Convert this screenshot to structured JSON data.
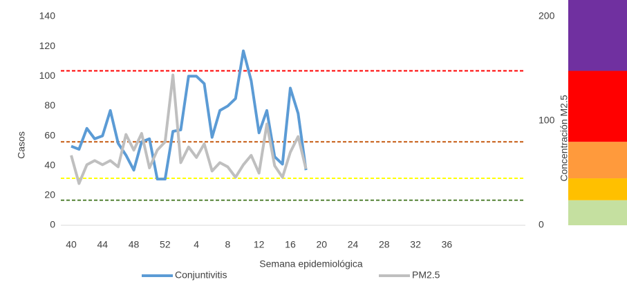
{
  "chart_data": {
    "type": "line",
    "y_label": "Casos",
    "y2_label": "Concentración M2.5",
    "x_label": "Semana epidemiológica",
    "categories": [
      40,
      null,
      null,
      null,
      44,
      null,
      null,
      null,
      48,
      null,
      null,
      null,
      52,
      null,
      null,
      null,
      4,
      null,
      null,
      null,
      8,
      null,
      null,
      null,
      12,
      null,
      null,
      null,
      16,
      null,
      null,
      null,
      20,
      null,
      null,
      null,
      24,
      null,
      null,
      null,
      28,
      null,
      null,
      null,
      32,
      null,
      null,
      null,
      36,
      null,
      null,
      null,
      null,
      null,
      null,
      null,
      null,
      null
    ],
    "ylim": [
      0,
      140
    ],
    "yticks": [
      0,
      20,
      40,
      60,
      80,
      100,
      120,
      140
    ],
    "y2lim": [
      0,
      200
    ],
    "y2ticks": [
      0,
      100,
      200
    ],
    "series": [
      {
        "name": "Conjuntivitis",
        "color": "#5b9bd5",
        "values": [
          53,
          51,
          65,
          58,
          60,
          77,
          55,
          47,
          37,
          56,
          58,
          31,
          31,
          63,
          64,
          100,
          100,
          95,
          59,
          77,
          80,
          85,
          117,
          97,
          62,
          77,
          46,
          41,
          92,
          75,
          37,
          null,
          null,
          null,
          null,
          null,
          null,
          null,
          null,
          null,
          null,
          null,
          null,
          null,
          null,
          null,
          null,
          null,
          null,
          null,
          null,
          null,
          null,
          null,
          null,
          null,
          null,
          null
        ]
      },
      {
        "name": "PM2.5",
        "color": "#bfbfbf",
        "axis": "y2",
        "values": [
          67,
          40,
          58,
          62,
          58,
          62,
          56,
          87,
          72,
          88,
          55,
          72,
          80,
          144,
          60,
          75,
          65,
          78,
          52,
          60,
          56,
          46,
          58,
          67,
          50,
          97,
          57,
          46,
          70,
          85,
          54,
          null,
          null,
          null,
          null,
          null,
          null,
          null,
          null,
          null,
          null,
          null,
          null,
          null,
          null,
          null,
          null,
          null,
          null,
          null,
          null,
          null,
          null,
          null,
          null,
          null,
          null,
          null
        ]
      }
    ],
    "thresholds": [
      {
        "value": 24,
        "color": "#548235"
      },
      {
        "value": 45,
        "color": "#ffff00"
      },
      {
        "value": 80,
        "color": "#c55a11"
      },
      {
        "value": 148,
        "color": "#ff0000"
      }
    ],
    "band_colors": [
      "#c5e0a0",
      "#ffc000",
      "#ff9a3c",
      "#ff0000",
      "#7030a0"
    ]
  }
}
